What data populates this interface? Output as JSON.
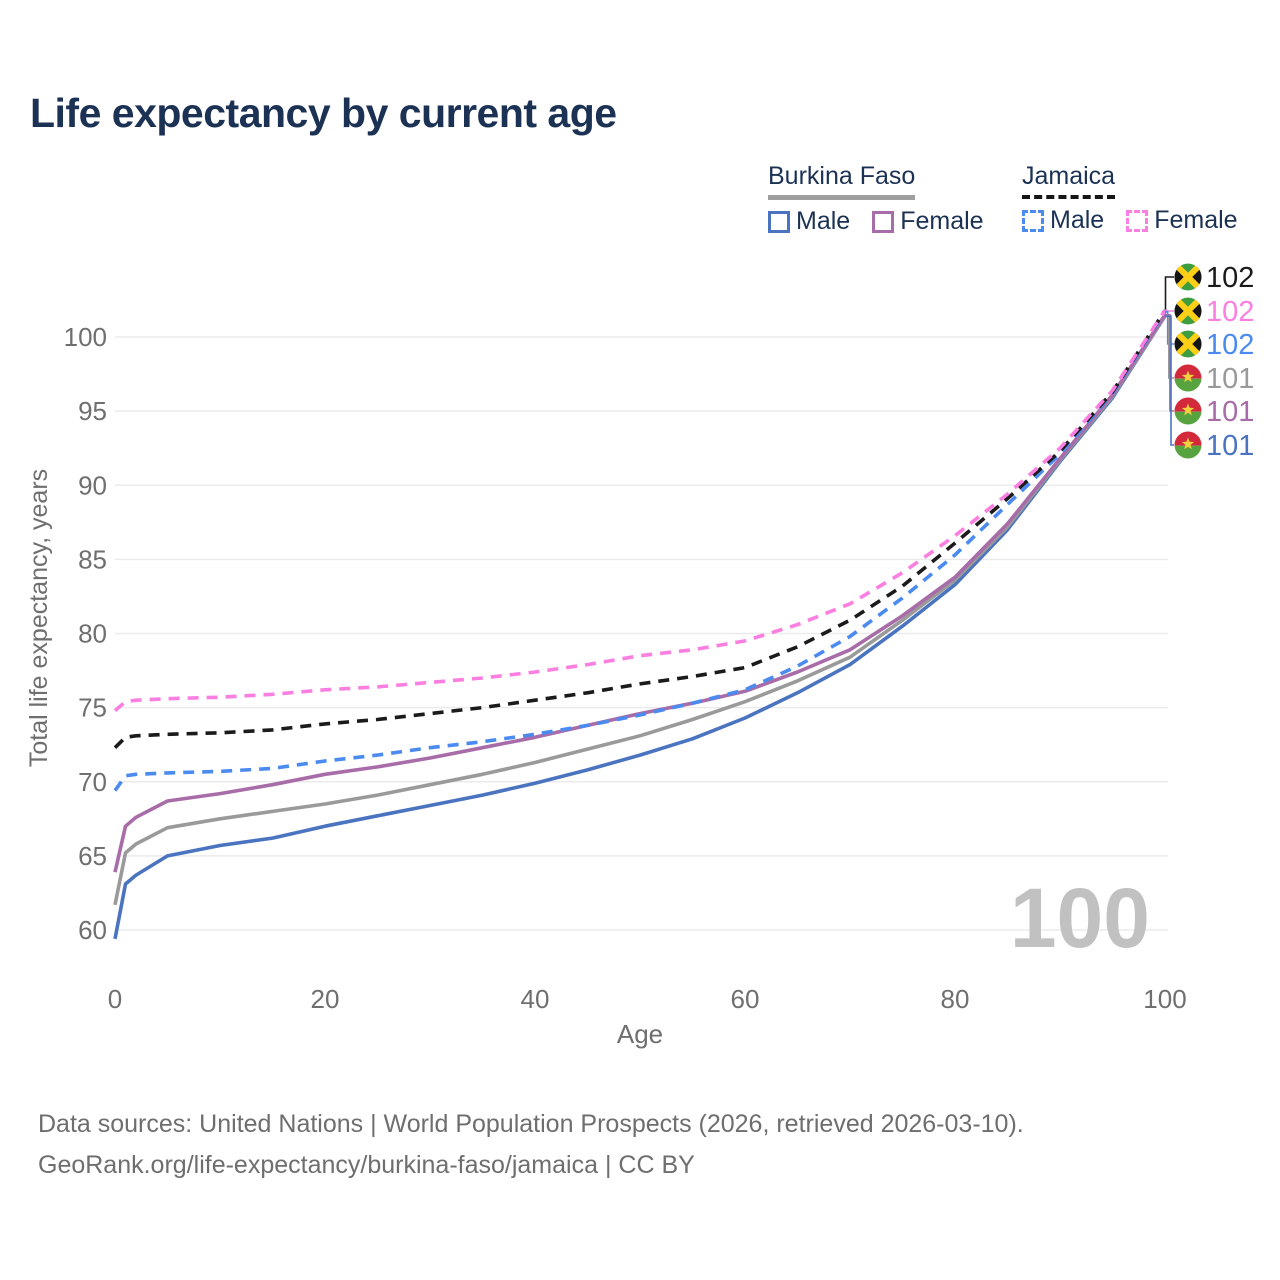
{
  "title": "Life expectancy by current age",
  "colors": {
    "title_text": "#1c3254",
    "tick_text": "#6f6f6f",
    "gridline": "#ebebeb",
    "watermark": "#c1c1c1",
    "footer_text": "#6e6e6e",
    "legend_underline_burkina_faso": "#9e9e9e",
    "legend_underline_jamaica": "#161616"
  },
  "legend": {
    "groups": [
      {
        "name": "Burkina Faso",
        "underline": "solid",
        "items": [
          {
            "label": "Male",
            "color": "#4b74c0",
            "dashed": false
          },
          {
            "label": "Female",
            "color": "#a86ca8",
            "dashed": false
          }
        ]
      },
      {
        "name": "Jamaica",
        "underline": "dashed",
        "items": [
          {
            "label": "Male",
            "color": "#4b8bf0",
            "dashed": true
          },
          {
            "label": "Female",
            "color": "#fb7ee1",
            "dashed": true
          }
        ]
      }
    ]
  },
  "watermark": "100",
  "footer": {
    "line1": "Data sources: United Nations | World Population Prospects (2026, retrieved 2026-03-10).",
    "line2": "GeoRank.org/life-expectancy/burkina-faso/jamaica | CC BY"
  },
  "chart_data": {
    "type": "line",
    "title": "Life expectancy by current age",
    "xlabel": "Age",
    "ylabel": "Total life expectancy, years",
    "xlim": [
      0,
      100
    ],
    "ylim": [
      58.5,
      103
    ],
    "x_ticks": [
      0,
      20,
      40,
      60,
      80,
      100
    ],
    "y_ticks": [
      60,
      65,
      70,
      75,
      80,
      85,
      90,
      95,
      100
    ],
    "grid": "horizontal",
    "legend_position": "top-right",
    "x": [
      0,
      1,
      2,
      5,
      10,
      15,
      20,
      25,
      30,
      35,
      40,
      45,
      50,
      55,
      60,
      65,
      70,
      75,
      80,
      85,
      90,
      95,
      100
    ],
    "series": [
      {
        "id": "jamaica-both",
        "country": "Jamaica",
        "sex": "Both",
        "color": "#1b1b1b",
        "dashed": true,
        "flag": "jamaica",
        "end_label": "102",
        "values": [
          72.3,
          73.0,
          73.1,
          73.2,
          73.3,
          73.5,
          73.9,
          74.2,
          74.6,
          75.0,
          75.5,
          76.0,
          76.6,
          77.1,
          77.7,
          79.1,
          80.9,
          83.2,
          86.1,
          89.1,
          92.3,
          96.3,
          101.8
        ]
      },
      {
        "id": "jamaica-female",
        "country": "Jamaica",
        "sex": "Female",
        "color": "#fb7ee1",
        "dashed": true,
        "flag": "jamaica",
        "end_label": "102",
        "values": [
          74.8,
          75.4,
          75.5,
          75.6,
          75.7,
          75.9,
          76.2,
          76.4,
          76.7,
          77.0,
          77.4,
          77.9,
          78.5,
          78.9,
          79.5,
          80.6,
          82.0,
          84.1,
          86.6,
          89.4,
          92.5,
          96.4,
          101.8
        ]
      },
      {
        "id": "jamaica-male",
        "country": "Jamaica",
        "sex": "Male",
        "color": "#4b8bf0",
        "dashed": true,
        "flag": "jamaica",
        "end_label": "102",
        "values": [
          69.4,
          70.4,
          70.5,
          70.6,
          70.7,
          70.9,
          71.4,
          71.8,
          72.3,
          72.7,
          73.2,
          73.8,
          74.5,
          75.3,
          76.2,
          77.8,
          79.8,
          82.4,
          85.3,
          88.7,
          92.1,
          96.2,
          101.7
        ]
      },
      {
        "id": "burkina-faso-both",
        "country": "Burkina Faso",
        "sex": "Both",
        "color": "#9a9a9a",
        "dashed": false,
        "flag": "burkina-faso",
        "end_label": "101",
        "values": [
          61.7,
          65.2,
          65.8,
          66.9,
          67.5,
          68.0,
          68.5,
          69.1,
          69.8,
          70.5,
          71.3,
          72.2,
          73.1,
          74.2,
          75.4,
          76.8,
          78.4,
          80.9,
          83.6,
          87.2,
          91.7,
          96.0,
          101.4
        ]
      },
      {
        "id": "burkina-faso-female",
        "country": "Burkina Faso",
        "sex": "Female",
        "color": "#a86ca8",
        "dashed": false,
        "flag": "burkina-faso",
        "end_label": "101",
        "values": [
          63.9,
          67.0,
          67.6,
          68.7,
          69.2,
          69.8,
          70.5,
          71.0,
          71.6,
          72.3,
          73.0,
          73.8,
          74.6,
          75.3,
          76.1,
          77.4,
          78.9,
          81.2,
          83.8,
          87.4,
          91.8,
          96.1,
          101.5
        ]
      },
      {
        "id": "burkina-faso-male",
        "country": "Burkina Faso",
        "sex": "Male",
        "color": "#4b74c0",
        "dashed": false,
        "flag": "burkina-faso",
        "end_label": "101",
        "values": [
          59.4,
          63.1,
          63.7,
          65.0,
          65.7,
          66.2,
          67.0,
          67.7,
          68.4,
          69.1,
          69.9,
          70.8,
          71.8,
          72.9,
          74.3,
          76.0,
          77.9,
          80.5,
          83.3,
          87.0,
          91.6,
          95.9,
          101.4
        ]
      }
    ]
  }
}
